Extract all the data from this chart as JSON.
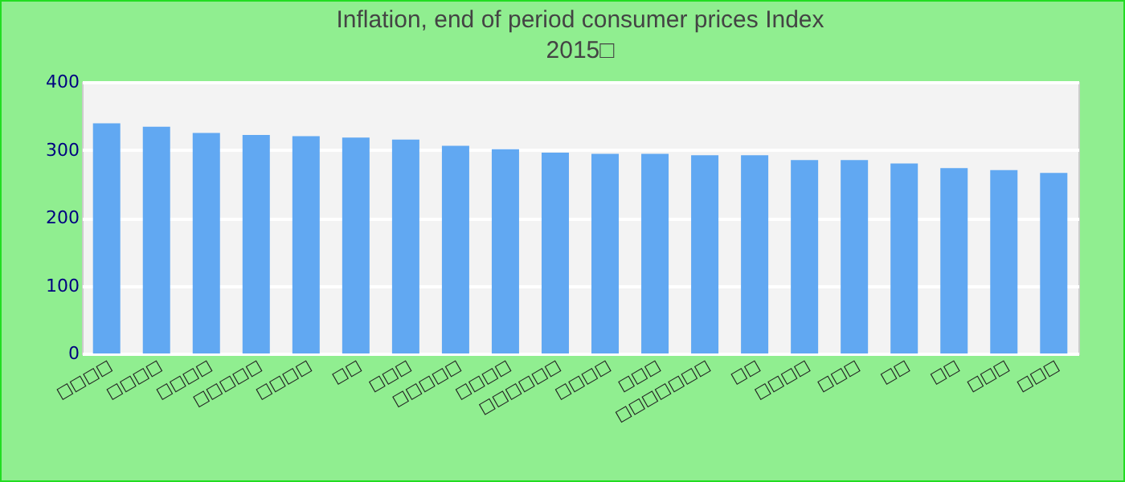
{
  "chart_data": {
    "type": "bar",
    "title": "Inflation, end of period consumer prices  Index",
    "subtitle": "2015□",
    "categories": [
      "□□□□",
      "□□□□",
      "□□□□",
      "□□□□□",
      "□□□□",
      "□□",
      "□□□",
      "□□□□□",
      "□□□□",
      "□□□□□□",
      "□□□□",
      "□□□",
      "□□□□□□□",
      "□□",
      "□□□□",
      "□□□",
      "□□",
      "□□",
      "□□□",
      "□□□"
    ],
    "values": [
      339,
      334,
      325,
      322,
      320,
      318,
      315,
      306,
      301,
      296,
      294,
      294,
      292,
      292,
      285,
      285,
      280,
      273,
      270,
      266
    ],
    "color": "#61a8f2",
    "ylim": [
      0,
      400
    ],
    "yticks": [
      0,
      100,
      200,
      300,
      400
    ],
    "grid": "y"
  }
}
